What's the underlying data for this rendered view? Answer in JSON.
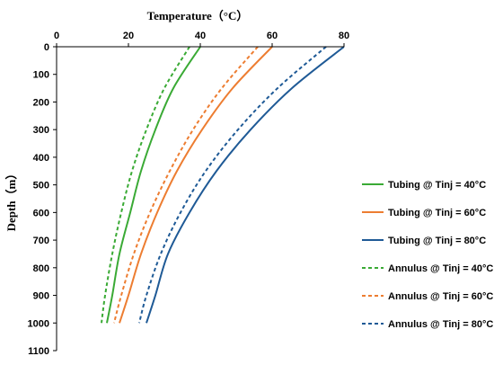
{
  "chart_data": {
    "type": "line",
    "xlabel": "Temperature（°C）",
    "ylabel": "Depth（m）",
    "xlim": [
      0,
      80
    ],
    "ylim": [
      0,
      1100
    ],
    "x_ticks": [
      "0",
      "20",
      "40",
      "60",
      "80"
    ],
    "y_ticks": [
      "0",
      "100",
      "200",
      "300",
      "400",
      "500",
      "600",
      "700",
      "800",
      "900",
      "1000",
      "1100"
    ],
    "x_axis_position": "top",
    "y_axis": "inverted",
    "grid": false,
    "legend_position": "right",
    "series": [
      {
        "name": "Tubing @ Tinj = 40°C",
        "color": "#3aaa35",
        "dash": "solid",
        "points": [
          [
            40,
            0
          ],
          [
            32.5,
            150
          ],
          [
            27.5,
            300
          ],
          [
            23.5,
            450
          ],
          [
            20.5,
            600
          ],
          [
            17.5,
            750
          ],
          [
            15.5,
            900
          ],
          [
            14,
            1000
          ]
        ]
      },
      {
        "name": "Tubing @ Tinj = 60°C",
        "color": "#ed7d31",
        "dash": "solid",
        "points": [
          [
            60,
            0
          ],
          [
            49,
            150
          ],
          [
            40.5,
            300
          ],
          [
            33.5,
            450
          ],
          [
            28,
            600
          ],
          [
            23.5,
            750
          ],
          [
            20,
            900
          ],
          [
            17.5,
            1000
          ]
        ]
      },
      {
        "name": "Tubing @ Tinj = 80°C",
        "color": "#1f5a96",
        "dash": "solid",
        "points": [
          [
            80,
            0
          ],
          [
            65.5,
            150
          ],
          [
            54,
            300
          ],
          [
            44.5,
            450
          ],
          [
            37,
            600
          ],
          [
            31,
            750
          ],
          [
            27.5,
            900
          ],
          [
            25,
            1000
          ]
        ]
      },
      {
        "name": "Annulus @ Tinj = 40°C",
        "color": "#3aaa35",
        "dash": "dashed",
        "points": [
          [
            37,
            0
          ],
          [
            30,
            150
          ],
          [
            25,
            300
          ],
          [
            21,
            450
          ],
          [
            18,
            600
          ],
          [
            15.5,
            750
          ],
          [
            13.5,
            900
          ],
          [
            12.5,
            1000
          ]
        ]
      },
      {
        "name": "Annulus @ Tinj = 60°C",
        "color": "#ed7d31",
        "dash": "dashed",
        "points": [
          [
            56,
            0
          ],
          [
            46,
            150
          ],
          [
            38,
            300
          ],
          [
            31.5,
            450
          ],
          [
            26,
            600
          ],
          [
            21.5,
            750
          ],
          [
            18,
            900
          ],
          [
            16,
            1000
          ]
        ]
      },
      {
        "name": "Annulus @ Tinj = 80°C",
        "color": "#1f5a96",
        "dash": "dashed",
        "points": [
          [
            75,
            0
          ],
          [
            61.5,
            150
          ],
          [
            50.5,
            300
          ],
          [
            41.5,
            450
          ],
          [
            34.5,
            600
          ],
          [
            29,
            750
          ],
          [
            25,
            900
          ],
          [
            23,
            1000
          ]
        ]
      }
    ]
  }
}
